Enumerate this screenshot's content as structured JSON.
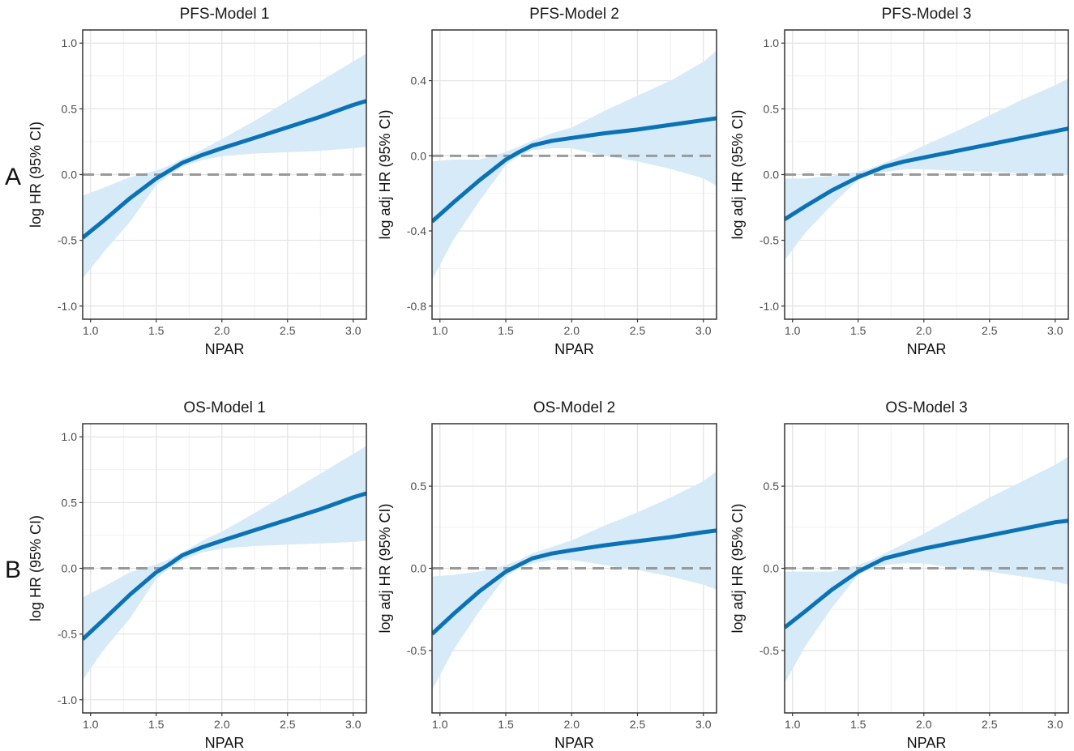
{
  "figure": {
    "row_labels": [
      "A",
      "B"
    ]
  },
  "colors": {
    "line": "#0b72b5",
    "band": "#d6eaf8",
    "reference": "#999999",
    "grid_major": "#e4e4e4",
    "grid_minor": "#f1f1f1",
    "frame": "#333333"
  },
  "chart_data": [
    {
      "type": "line",
      "title": "PFS-Model 1",
      "xlabel": "NPAR",
      "ylabel": "log HR (95% CI)",
      "xlim": [
        0.94,
        3.1
      ],
      "ylim": [
        -1.1,
        1.1
      ],
      "xticks": [
        1.0,
        1.5,
        2.0,
        2.5,
        3.0
      ],
      "xtick_labels": [
        "1.0",
        "1.5",
        "2.0",
        "2.5",
        "3.0"
      ],
      "yticks": [
        -1.0,
        -0.5,
        0.0,
        0.5,
        1.0
      ],
      "ytick_labels": [
        "-1.0",
        "-0.5",
        "0.0",
        "0.5",
        "1.0"
      ],
      "reference_y": 0,
      "x": [
        0.94,
        1.1,
        1.3,
        1.5,
        1.6,
        1.7,
        1.85,
        2.0,
        2.25,
        2.5,
        2.75,
        3.0,
        3.1
      ],
      "y": [
        -0.48,
        -0.35,
        -0.18,
        -0.03,
        0.03,
        0.09,
        0.15,
        0.2,
        0.28,
        0.36,
        0.44,
        0.53,
        0.56
      ],
      "lower": [
        -0.79,
        -0.59,
        -0.36,
        -0.08,
        0.0,
        0.06,
        0.11,
        0.14,
        0.16,
        0.17,
        0.18,
        0.2,
        0.21
      ],
      "upper": [
        -0.16,
        -0.1,
        -0.02,
        0.03,
        0.07,
        0.12,
        0.19,
        0.27,
        0.41,
        0.56,
        0.71,
        0.86,
        0.92
      ]
    },
    {
      "type": "line",
      "title": "PFS-Model 2",
      "xlabel": "NPAR",
      "ylabel": "log adj HR (95% CI)",
      "xlim": [
        0.94,
        3.1
      ],
      "ylim": [
        -0.87,
        0.67
      ],
      "xticks": [
        1.0,
        1.5,
        2.0,
        2.5,
        3.0
      ],
      "xtick_labels": [
        "1.0",
        "1.5",
        "2.0",
        "2.5",
        "3.0"
      ],
      "yticks": [
        -0.8,
        -0.4,
        0.0,
        0.4
      ],
      "ytick_labels": [
        "-0.8",
        "-0.4",
        "0.0",
        "0.4"
      ],
      "reference_y": 0,
      "x": [
        0.94,
        1.1,
        1.3,
        1.5,
        1.6,
        1.7,
        1.85,
        2.0,
        2.25,
        2.5,
        2.75,
        3.0,
        3.1
      ],
      "y": [
        -0.35,
        -0.25,
        -0.13,
        -0.02,
        0.02,
        0.055,
        0.08,
        0.095,
        0.12,
        0.14,
        0.165,
        0.19,
        0.2
      ],
      "lower": [
        -0.66,
        -0.45,
        -0.24,
        -0.05,
        0.0,
        0.03,
        0.04,
        0.04,
        0.0,
        -0.03,
        -0.07,
        -0.12,
        -0.16
      ],
      "upper": [
        -0.03,
        -0.02,
        -0.02,
        0.02,
        0.05,
        0.08,
        0.12,
        0.15,
        0.24,
        0.32,
        0.4,
        0.5,
        0.56
      ]
    },
    {
      "type": "line",
      "title": "PFS-Model 3",
      "xlabel": "NPAR",
      "ylabel": "log adj HR (95% CI)",
      "xlim": [
        0.94,
        3.1
      ],
      "ylim": [
        -1.1,
        1.1
      ],
      "xticks": [
        1.0,
        1.5,
        2.0,
        2.5,
        3.0
      ],
      "xtick_labels": [
        "1.0",
        "1.5",
        "2.0",
        "2.5",
        "3.0"
      ],
      "yticks": [
        -1.0,
        -0.5,
        0.0,
        0.5,
        1.0
      ],
      "ytick_labels": [
        "-1.0",
        "-0.5",
        "0.0",
        "0.5",
        "1.0"
      ],
      "reference_y": 0,
      "x": [
        0.94,
        1.1,
        1.3,
        1.5,
        1.6,
        1.7,
        1.85,
        2.0,
        2.25,
        2.5,
        2.75,
        3.0,
        3.1
      ],
      "y": [
        -0.34,
        -0.24,
        -0.12,
        -0.02,
        0.02,
        0.06,
        0.1,
        0.13,
        0.18,
        0.23,
        0.28,
        0.33,
        0.35
      ],
      "lower": [
        -0.65,
        -0.44,
        -0.23,
        -0.04,
        0.0,
        0.02,
        0.04,
        0.04,
        0.03,
        0.02,
        0.01,
        0.0,
        0.0
      ],
      "upper": [
        -0.03,
        -0.03,
        -0.01,
        0.02,
        0.05,
        0.09,
        0.15,
        0.22,
        0.33,
        0.45,
        0.57,
        0.68,
        0.73
      ]
    },
    {
      "type": "line",
      "title": "OS-Model 1",
      "xlabel": "NPAR",
      "ylabel": "log HR (95% CI)",
      "xlim": [
        0.94,
        3.1
      ],
      "ylim": [
        -1.1,
        1.1
      ],
      "xticks": [
        1.0,
        1.5,
        2.0,
        2.5,
        3.0
      ],
      "xtick_labels": [
        "1.0",
        "1.5",
        "2.0",
        "2.5",
        "3.0"
      ],
      "yticks": [
        -1.0,
        -0.5,
        0.0,
        0.5,
        1.0
      ],
      "ytick_labels": [
        "-1.0",
        "-0.5",
        "0.0",
        "0.5",
        "1.0"
      ],
      "reference_y": 0,
      "x": [
        0.94,
        1.1,
        1.3,
        1.5,
        1.6,
        1.7,
        1.85,
        2.0,
        2.25,
        2.5,
        2.75,
        3.0,
        3.1
      ],
      "y": [
        -0.54,
        -0.39,
        -0.2,
        -0.03,
        0.03,
        0.1,
        0.16,
        0.21,
        0.29,
        0.37,
        0.45,
        0.54,
        0.57
      ],
      "lower": [
        -0.85,
        -0.62,
        -0.38,
        -0.08,
        0.0,
        0.06,
        0.12,
        0.15,
        0.17,
        0.18,
        0.19,
        0.2,
        0.21
      ],
      "upper": [
        -0.22,
        -0.14,
        -0.03,
        0.03,
        0.07,
        0.12,
        0.21,
        0.28,
        0.42,
        0.57,
        0.72,
        0.87,
        0.93
      ]
    },
    {
      "type": "line",
      "title": "OS-Model 2",
      "xlabel": "NPAR",
      "ylabel": "log adj HR (95% CI)",
      "xlim": [
        0.94,
        3.1
      ],
      "ylim": [
        -0.88,
        0.88
      ],
      "xticks": [
        1.0,
        1.5,
        2.0,
        2.5,
        3.0
      ],
      "xtick_labels": [
        "1.0",
        "1.5",
        "2.0",
        "2.5",
        "3.0"
      ],
      "yticks": [
        -0.5,
        0.0,
        0.5
      ],
      "ytick_labels": [
        "-0.5",
        "0.0",
        "0.5"
      ],
      "reference_y": 0,
      "x": [
        0.94,
        1.1,
        1.3,
        1.5,
        1.6,
        1.7,
        1.85,
        2.0,
        2.25,
        2.5,
        2.75,
        3.0,
        3.1
      ],
      "y": [
        -0.4,
        -0.28,
        -0.14,
        -0.02,
        0.02,
        0.06,
        0.09,
        0.11,
        0.14,
        0.165,
        0.19,
        0.22,
        0.23
      ],
      "lower": [
        -0.74,
        -0.5,
        -0.26,
        -0.05,
        0.0,
        0.03,
        0.05,
        0.05,
        0.02,
        -0.01,
        -0.05,
        -0.1,
        -0.13
      ],
      "upper": [
        -0.05,
        -0.04,
        -0.02,
        0.02,
        0.05,
        0.09,
        0.13,
        0.17,
        0.26,
        0.34,
        0.43,
        0.53,
        0.59
      ]
    },
    {
      "type": "line",
      "title": "OS-Model 3",
      "xlabel": "NPAR",
      "ylabel": "log adj HR (95% CI)",
      "xlim": [
        0.94,
        3.1
      ],
      "ylim": [
        -0.88,
        0.88
      ],
      "xticks": [
        1.0,
        1.5,
        2.0,
        2.5,
        3.0
      ],
      "xtick_labels": [
        "1.0",
        "1.5",
        "2.0",
        "2.5",
        "3.0"
      ],
      "yticks": [
        -0.5,
        0.0,
        0.5
      ],
      "ytick_labels": [
        "-0.5",
        "0.0",
        "0.5"
      ],
      "reference_y": 0,
      "x": [
        0.94,
        1.1,
        1.3,
        1.5,
        1.6,
        1.7,
        1.85,
        2.0,
        2.25,
        2.5,
        2.75,
        3.0,
        3.1
      ],
      "y": [
        -0.36,
        -0.26,
        -0.13,
        -0.02,
        0.02,
        0.06,
        0.09,
        0.12,
        0.16,
        0.2,
        0.24,
        0.28,
        0.29
      ],
      "lower": [
        -0.7,
        -0.47,
        -0.24,
        -0.04,
        0.0,
        0.02,
        0.03,
        0.03,
        0.0,
        -0.02,
        -0.05,
        -0.08,
        -0.1
      ],
      "upper": [
        -0.02,
        -0.02,
        -0.02,
        0.02,
        0.05,
        0.09,
        0.15,
        0.21,
        0.32,
        0.43,
        0.53,
        0.63,
        0.68
      ]
    }
  ]
}
